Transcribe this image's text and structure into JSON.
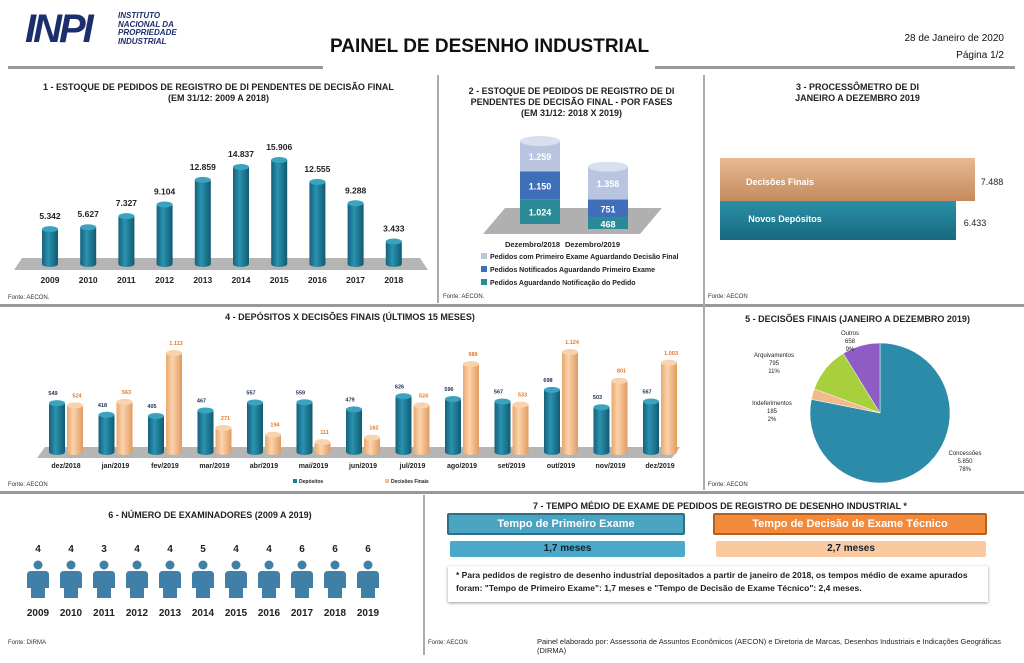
{
  "header": {
    "logo_text": "INPI",
    "logo_subtitle": "INSTITUTO NACIONAL DA PROPRIEDADE INDUSTRIAL",
    "title": "PAINEL DE DESENHO INDUSTRIAL",
    "date": "28 de Janeiro de 2020",
    "page": "Página 1/2"
  },
  "colors": {
    "teal": "#1f7f9a",
    "peach": "#f6c08f",
    "orange": "#f28a3c",
    "navy": "#1b2f6e"
  },
  "panels": {
    "p1": {
      "title": "1 - ESTOQUE DE PEDIDOS DE REGISTRO DE DI PENDENTES DE DECISÃO FINAL",
      "subtitle": "(EM 31/12: 2009 A 2018)",
      "source": "Fonte: AECON."
    },
    "p2": {
      "title": "2 - ESTOQUE DE PEDIDOS DE REGISTRO DE DI",
      "title2": "PENDENTES DE DECISÃO FINAL - POR FASES",
      "subtitle": "(EM 31/12: 2018 X 2019)",
      "source": "Fonte: AECON."
    },
    "p3": {
      "title": "3 - PROCESSÔMETRO DE DI",
      "subtitle": "JANEIRO A DEZEMBRO 2019",
      "source": "Fonte: AECON"
    },
    "p4": {
      "title": "4 - DEPÓSITOS X DECISÕES FINAIS (ÚLTIMOS 15 MESES)",
      "source": "Fonte: AECON"
    },
    "p5": {
      "title": "5 - DECISÕES FINAIS (JANEIRO A  DEZEMBRO 2019)",
      "source": "Fonte: AECON"
    },
    "p6": {
      "title": "6 - NÚMERO DE EXAMINADORES (2009 A 2019)",
      "source": "Fonte: DIRMA"
    },
    "p7": {
      "title": "7 - TEMPO MÉDIO DE EXAME DE PEDIDOS DE REGISTRO DE DESENHO INDUSTRIAL *",
      "source": "Fonte: AECON",
      "first_label": "Tempo de Primeiro Exame",
      "first_value": "1,7 meses",
      "second_label": "Tempo de Decisão de Exame Técnico",
      "second_value": "2,7 meses",
      "note": "* Para pedidos de registro de desenho industrial depositados a partir de  janeiro de 2018, os tempos médio de exame apurados foram: \"Tempo de Primeiro Exame\": 1,7 meses e \"Tempo de Decisão de Exame Técnico\": 2,4 meses."
    }
  },
  "footer": "Painel elaborado por: Assessoria de Assuntos Econômicos (AECON) e Diretoria de Marcas, Desenhos Industriais e Indicações Geográficas (DIRMA)",
  "chart_data": [
    {
      "id": "estoque",
      "type": "bar",
      "categories": [
        "2009",
        "2010",
        "2011",
        "2012",
        "2013",
        "2014",
        "2015",
        "2016",
        "2017",
        "2018"
      ],
      "values": [
        5342,
        5627,
        7327,
        9104,
        12859,
        14837,
        15906,
        12555,
        9288,
        3433
      ]
    },
    {
      "id": "fases",
      "type": "bar",
      "stacked": true,
      "categories": [
        "Dezembro/2018",
        "Dezembro/2019"
      ],
      "series": [
        {
          "name": "Pedidos Aguardando Notificação do Pedido",
          "values": [
            1024,
            468
          ],
          "color": "#2a8a96"
        },
        {
          "name": "Pedidos Notificados Aguardando Primeiro Exame",
          "values": [
            1150,
            751
          ],
          "color": "#3f6fb8"
        },
        {
          "name": "Pedidos com Primeiro Exame Aguardando Decisão Final",
          "values": [
            1259,
            1358
          ],
          "color": "#b8c4e0"
        }
      ],
      "legend": "bottom"
    },
    {
      "id": "processometro",
      "type": "bar",
      "orientation": "horizontal",
      "categories": [
        "Decisões Finais",
        "Novos Depósitos"
      ],
      "values": [
        7488,
        6433
      ],
      "colors": [
        "#d9a37a",
        "#1e7d92"
      ]
    },
    {
      "id": "depositos_decisoes",
      "type": "bar",
      "categories": [
        "dez/2018",
        "jan/2019",
        "fev/2019",
        "mar/2019",
        "abr/2019",
        "mai/2019",
        "jun/2019",
        "jul/2019",
        "ago/2019",
        "set/2019",
        "out/2019",
        "nov/2019",
        "dez/2019"
      ],
      "series": [
        {
          "name": "Depósitos",
          "values": [
            549,
            418,
            405,
            467,
            557,
            559,
            479,
            626,
            596,
            567,
            698,
            503,
            567
          ],
          "color": "#1f7f9a"
        },
        {
          "name": "Decisões Finais",
          "values": [
            524,
            563,
            1113,
            271,
            194,
            111,
            162,
            524,
            989,
            533,
            1124,
            801,
            1003
          ],
          "color": "#f6c08f"
        }
      ],
      "legend": "bottom"
    },
    {
      "id": "decisoes_finais",
      "type": "pie",
      "slices": [
        {
          "label": "Concessões",
          "value": 5850,
          "percent": "78%",
          "color": "#2b8ba8"
        },
        {
          "label": "Indeferimentos",
          "value": 185,
          "percent": "2%",
          "color": "#f2b98a"
        },
        {
          "label": "Arquivamentos",
          "value": 795,
          "percent": "11%",
          "color": "#a8cf3c"
        },
        {
          "label": "Outros",
          "value": 658,
          "percent": "9%",
          "color": "#8e5cc4"
        }
      ]
    },
    {
      "id": "examinadores",
      "type": "bar",
      "categories": [
        "2009",
        "2010",
        "2011",
        "2012",
        "2013",
        "2014",
        "2015",
        "2016",
        "2017",
        "2018",
        "2019"
      ],
      "values": [
        4,
        4,
        3,
        4,
        4,
        5,
        4,
        4,
        6,
        6,
        6
      ],
      "icon": "person-icon"
    }
  ]
}
